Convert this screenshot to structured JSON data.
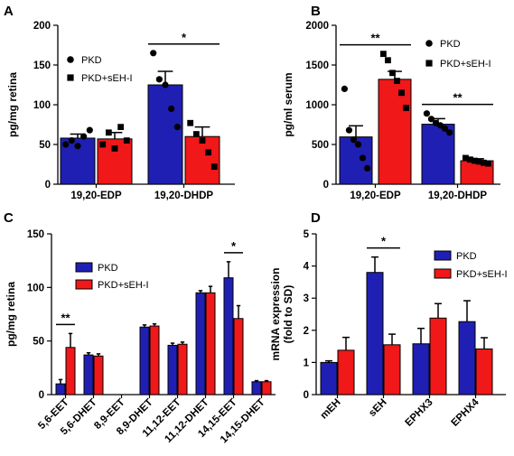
{
  "figure": {
    "colors": {
      "PKD": "#1f1fb4",
      "PKD+sEH-I": "#f01818",
      "axis": "#000000"
    }
  },
  "chart_data": [
    {
      "panel": "A",
      "type": "bar",
      "title": "",
      "ylabel": "pg/mg retina",
      "xlabel": "",
      "ylim": [
        0,
        200
      ],
      "yticks": [
        0,
        50,
        100,
        150,
        200
      ],
      "categories": [
        "19,20-EDP",
        "19,20-DHDP"
      ],
      "legend": "right-inside",
      "legend_markers": [
        "circle",
        "square"
      ],
      "series": [
        {
          "name": "PKD",
          "values": [
            58,
            125
          ],
          "errors": [
            5,
            17
          ],
          "points": [
            [
              50,
              55,
              48,
              60,
              68
            ],
            [
              165,
              132,
              125,
              95,
              72
            ]
          ]
        },
        {
          "name": "PKD+sEH-I",
          "values": [
            57,
            60
          ],
          "errors": [
            8,
            12
          ],
          "points": [
            [
              50,
              65,
              45,
              72,
              55
            ],
            [
              77,
              63,
              55,
              40,
              22
            ]
          ]
        }
      ],
      "significance": [
        {
          "label": "*",
          "category": "19,20-DHDP",
          "span": "both-bars"
        }
      ]
    },
    {
      "panel": "B",
      "type": "bar",
      "title": "",
      "ylabel": "pg/ml serum",
      "xlabel": "",
      "ylim": [
        0,
        2000
      ],
      "yticks": [
        0,
        500,
        1000,
        1500,
        2000
      ],
      "categories": [
        "19,20-EDP",
        "19,20-DHDP"
      ],
      "legend": "right-inside",
      "legend_markers": [
        "circle",
        "square"
      ],
      "series": [
        {
          "name": "PKD",
          "values": [
            595,
            755
          ],
          "errors": [
            140,
            70
          ],
          "points": [
            [
              1200,
              680,
              560,
              500,
              330,
              200
            ],
            [
              890,
              820,
              770,
              740,
              700,
              650
            ]
          ]
        },
        {
          "name": "PKD+sEH-I",
          "values": [
            1320,
            295
          ],
          "errors": [
            100,
            25
          ],
          "points": [
            [
              1640,
              1560,
              1400,
              1300,
              1150,
              960
            ],
            [
              330,
              310,
              295,
              285,
              270,
              260
            ]
          ]
        }
      ],
      "significance": [
        {
          "label": "**",
          "category": "19,20-EDP",
          "span": "both-bars"
        },
        {
          "label": "**",
          "category": "19,20-DHDP",
          "span": "both-bars"
        }
      ]
    },
    {
      "panel": "C",
      "type": "bar",
      "title": "",
      "ylabel": "pg/mg retina",
      "xlabel": "",
      "ylim": [
        0,
        150
      ],
      "yticks": [
        0,
        50,
        100,
        150
      ],
      "categories": [
        "5,6-EET",
        "5,6-DHET",
        "8,9-EET",
        "8,9-DHET",
        "11,12-EET",
        "11,12-DHET",
        "14,15-EET",
        "14,15-DHET"
      ],
      "legend": "top-left-inside",
      "series": [
        {
          "name": "PKD",
          "values": [
            10,
            37,
            0,
            63,
            46,
            95,
            109,
            12
          ],
          "errors": [
            4,
            2,
            0,
            2,
            2,
            2,
            15,
            1
          ]
        },
        {
          "name": "PKD+sEH-I",
          "values": [
            44,
            36,
            0,
            64,
            47,
            95,
            71,
            12
          ],
          "errors": [
            13,
            2,
            0,
            2,
            2,
            6,
            12,
            1
          ]
        }
      ],
      "significance": [
        {
          "label": "**",
          "category": "5,6-EET",
          "span": "both-bars"
        },
        {
          "label": "*",
          "category": "14,15-EET",
          "span": "both-bars"
        }
      ]
    },
    {
      "panel": "D",
      "type": "bar",
      "title": "",
      "ylabel": "mRNA expression\n(fold to SD)",
      "xlabel": "",
      "ylim": [
        0,
        5
      ],
      "yticks": [
        0,
        1,
        2,
        3,
        4,
        5
      ],
      "categories": [
        "mEH",
        "sEH",
        "EPHX3",
        "EPHX4"
      ],
      "legend": "top-right-inside",
      "series": [
        {
          "name": "PKD",
          "values": [
            1.0,
            3.8,
            1.58,
            2.27
          ],
          "errors": [
            0.05,
            0.48,
            0.48,
            0.65
          ]
        },
        {
          "name": "PKD+sEH-I",
          "values": [
            1.38,
            1.55,
            2.38,
            1.42
          ],
          "errors": [
            0.4,
            0.33,
            0.45,
            0.35
          ]
        }
      ],
      "significance": [
        {
          "label": "*",
          "category": "sEH",
          "span": "both-bars"
        }
      ]
    }
  ]
}
